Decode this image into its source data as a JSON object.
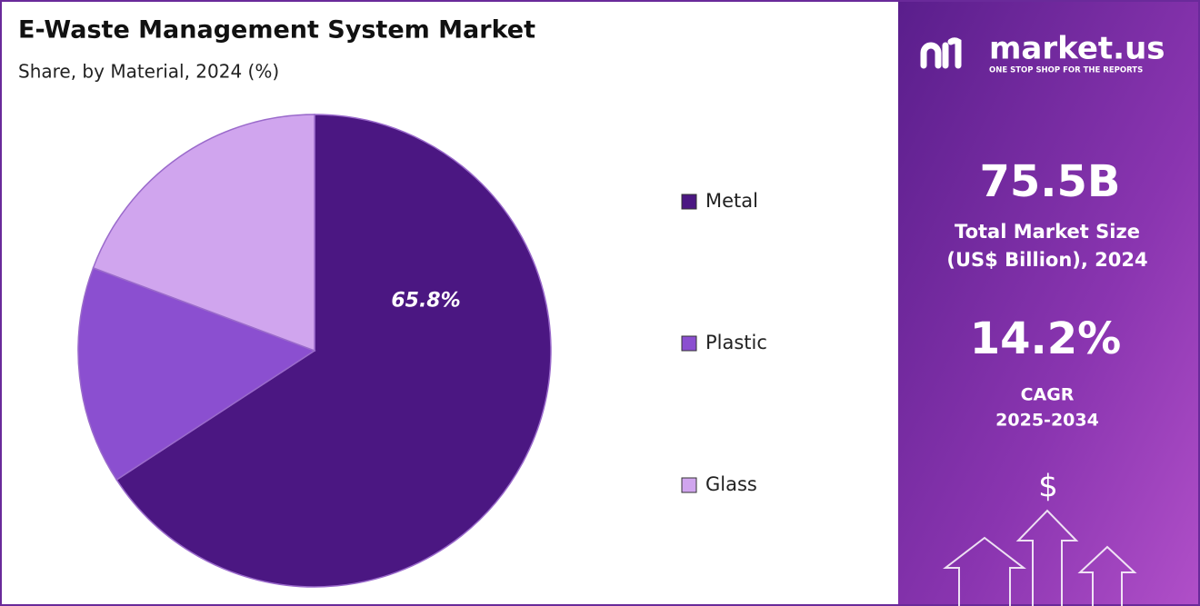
{
  "chart_data": {
    "type": "pie",
    "title": "E-Waste Management System Market",
    "subtitle": "Share, by Material, 2024 (%)",
    "categories": [
      "Metal",
      "Plastic",
      "Glass"
    ],
    "values": [
      65.8,
      14.9,
      19.3
    ],
    "value_labels": [
      "65.8%",
      null,
      null
    ],
    "colors": [
      "#4b1782",
      "#8b4fd0",
      "#d0a5ee"
    ],
    "legend": "right"
  },
  "panel": {
    "logo": "market.us",
    "tagline": "ONE STOP SHOP FOR THE REPORTS",
    "market_size": "75.5B",
    "market_size_label": [
      "Total Market Size",
      "(US$ Billion), 2024"
    ],
    "cagr": "14.2%",
    "cagr_label": [
      "CAGR",
      "2025-2034"
    ],
    "icon": "$"
  }
}
